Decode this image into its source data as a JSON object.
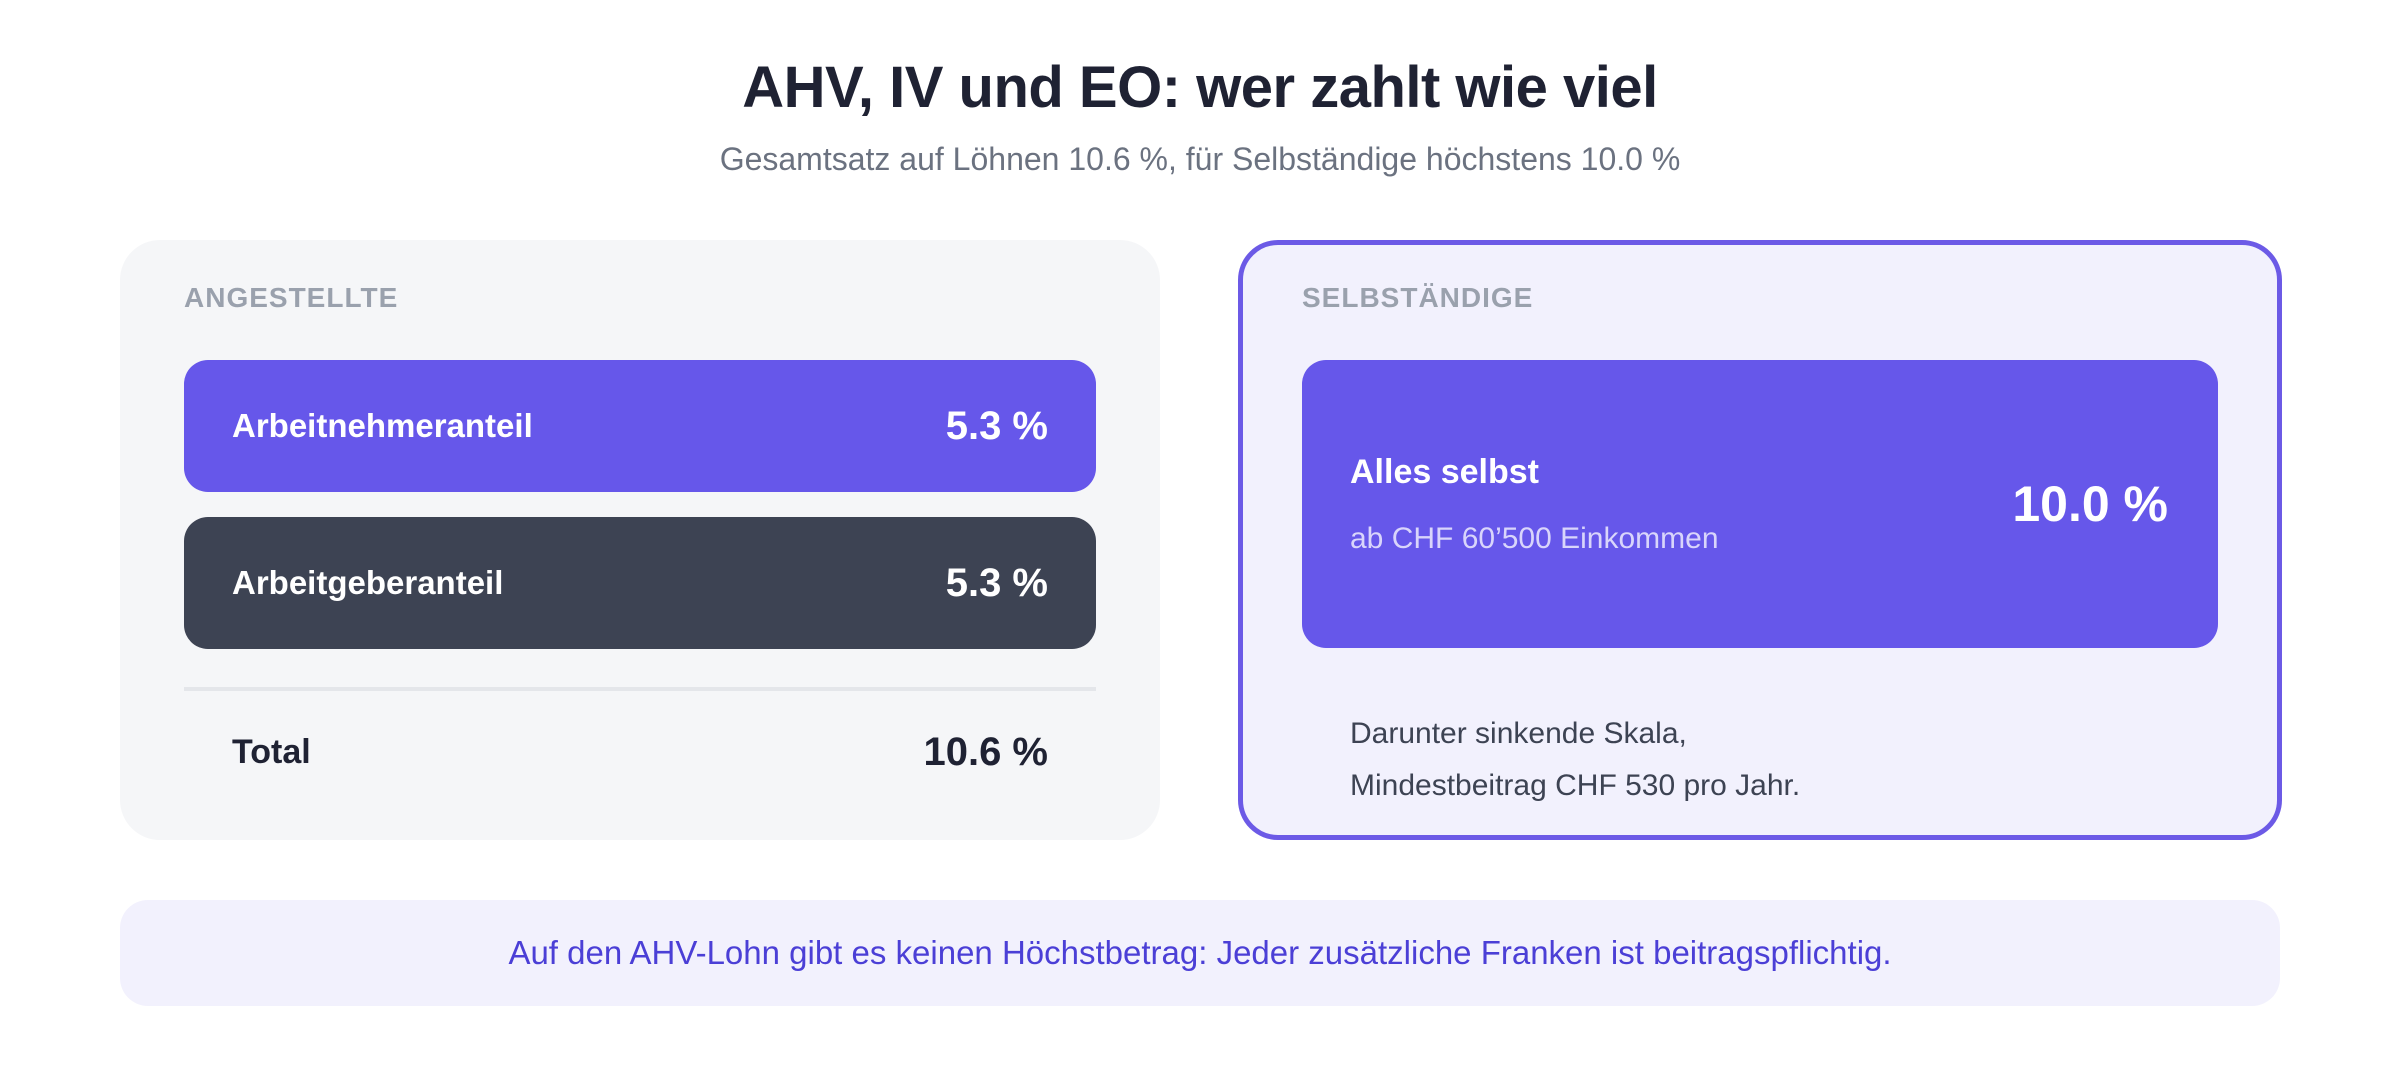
{
  "header": {
    "title": "AHV, IV und EO: wer zahlt wie viel",
    "subtitle": "Gesamtsatz auf Löhnen 10.6 %, für Selbständige höchstens 10.0 %"
  },
  "employees": {
    "label": "ANGESTELLTE",
    "employee_share": {
      "name": "Arbeitnehmeranteil",
      "value": "5.3 %"
    },
    "employer_share": {
      "name": "Arbeitgeberanteil",
      "value": "5.3 %"
    },
    "total": {
      "name": "Total",
      "value": "10.6 %"
    }
  },
  "self_employed": {
    "label": "SELBSTÄNDIGE",
    "main": {
      "title": "Alles selbst",
      "subtitle": "ab CHF 60’500 Einkommen",
      "value": "10.0 %"
    },
    "note_line1": "Darunter sinkende Skala,",
    "note_line2": "Mindestbeitrag CHF 530 pro Jahr."
  },
  "banner": {
    "text": "Auf den AHV-Lohn gibt es keinen Höchstbetrag: Jeder zusätzliche Franken ist beitragspflichtig."
  },
  "colors": {
    "accent": "#6657ea",
    "dark": "#3d4353",
    "accent_border": "#6c5ae6",
    "banner_text": "#4b3fd6"
  }
}
